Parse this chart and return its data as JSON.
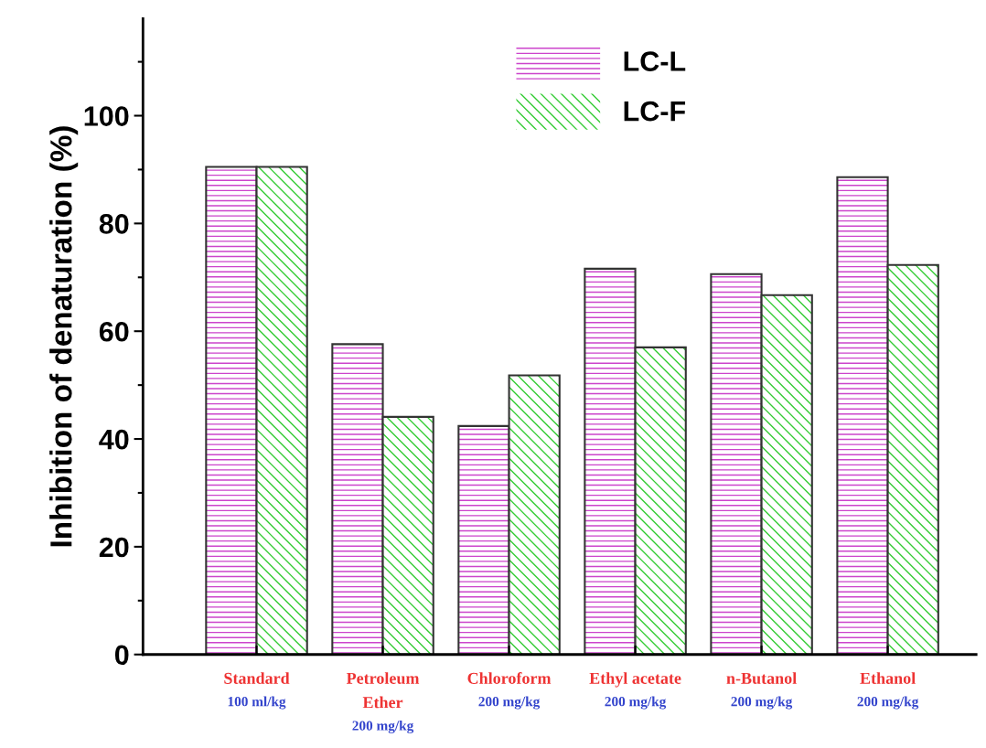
{
  "chart_data": {
    "type": "bar",
    "ylabel": "Inhibition of denaturation (%)",
    "categories": [
      "Standard\n100 ml/kg",
      "Petroleum\nEther\n200 mg/kg",
      "Chloroform\n200 mg/kg",
      "Ethyl acetate\n200 mg/kg",
      "n-Butanol\n200 mg/kg",
      "Ethanol\n200 mg/kg"
    ],
    "series": [
      {
        "name": "LC-L",
        "color": "#cc44cc",
        "values": [
          90.5,
          57.6,
          42.4,
          71.6,
          70.6,
          88.6
        ]
      },
      {
        "name": "LC-F",
        "color": "#33cc33",
        "values": [
          90.5,
          44.1,
          51.8,
          57.0,
          66.7,
          72.3
        ]
      }
    ],
    "ylim": [
      0,
      118
    ],
    "yticks": [
      0,
      20,
      40,
      60,
      80,
      100
    ],
    "legend": "top",
    "grid": false
  }
}
